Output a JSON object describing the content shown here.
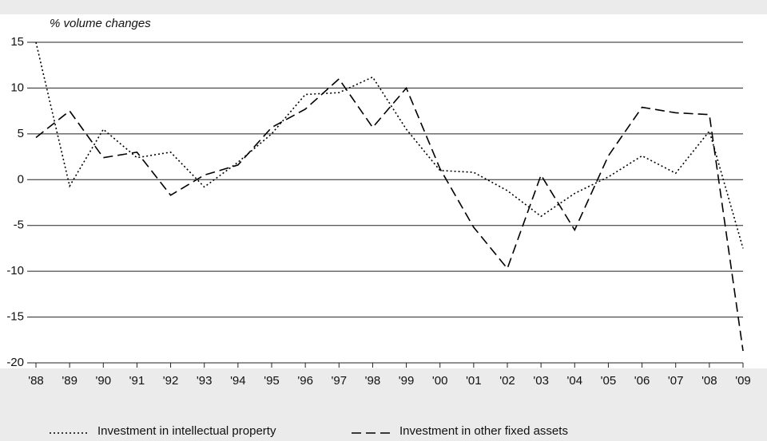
{
  "chart_data": {
    "type": "line",
    "y_label": "% volume changes",
    "categories": [
      "'88",
      "'89",
      "'90",
      "'91",
      "'92",
      "'93",
      "'94",
      "'95",
      "'96",
      "'97",
      "'98",
      "'99",
      "'00",
      "'01",
      "'02",
      "'03",
      "'04",
      "'05",
      "'06",
      "'07",
      "'08",
      "'09"
    ],
    "series": [
      {
        "name": "Investment in intellectual property",
        "color": "#000000",
        "linestyle": "dotted",
        "values": [
          15,
          -0.7,
          5.5,
          2.4,
          3,
          -0.8,
          1.9,
          5,
          9.3,
          9.5,
          11.2,
          5.5,
          1,
          0.8,
          -1.2,
          -4,
          -1.5,
          0.3,
          2.6,
          0.7,
          5.3,
          -7.5
        ]
      },
      {
        "name": "Investment in other fixed assets",
        "color": "#000000",
        "linestyle": "dashed",
        "values": [
          4.6,
          7.5,
          2.4,
          3,
          -1.7,
          0.5,
          1.6,
          5.7,
          7.7,
          11,
          5.7,
          10,
          1.2,
          -5.2,
          -9.7,
          0.5,
          -5.5,
          2.6,
          7.9,
          7.3,
          7.1,
          -18.7
        ]
      }
    ],
    "ylim": [
      -20,
      15
    ],
    "yticks": [
      -20,
      -15,
      -10,
      -5,
      0,
      5,
      10,
      15
    ],
    "grid": true
  }
}
